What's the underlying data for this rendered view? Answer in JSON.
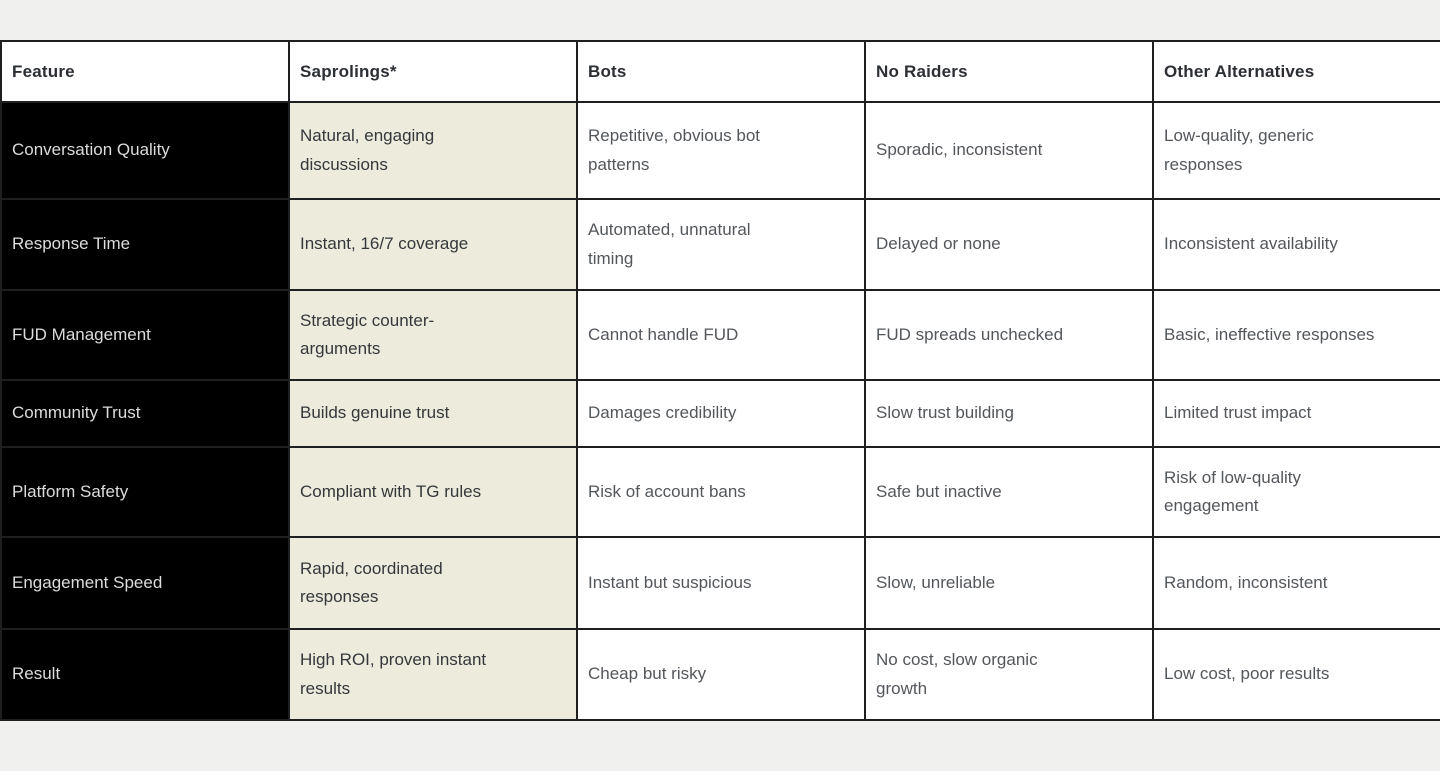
{
  "table": {
    "headers": [
      "Feature",
      "Saprolings*",
      "Bots",
      "No Raiders",
      "Other Alternatives"
    ],
    "rows": [
      {
        "cells": [
          "Conversation Quality",
          "Natural, engaging\ndiscussions",
          "Repetitive, obvious bot\npatterns",
          "Sporadic, inconsistent",
          "Low-quality, generic\nresponses"
        ]
      },
      {
        "cells": [
          "Response Time",
          "Instant, 16/7 coverage",
          "Automated, unnatural\ntiming",
          "Delayed or none",
          "Inconsistent availability"
        ]
      },
      {
        "cells": [
          "FUD Management",
          "Strategic counter-\narguments",
          "Cannot handle FUD",
          "FUD spreads unchecked",
          "Basic, ineffective responses"
        ]
      },
      {
        "cells": [
          "Community Trust",
          "Builds genuine trust",
          "Damages credibility",
          "Slow trust building",
          "Limited trust impact"
        ]
      },
      {
        "cells": [
          "Platform Safety",
          "Compliant with TG rules",
          "Risk of account bans",
          "Safe but inactive",
          "Risk of low-quality\nengagement"
        ]
      },
      {
        "cells": [
          "Engagement Speed",
          "Rapid, coordinated\nresponses",
          "Instant but suspicious",
          "Slow, unreliable",
          "Random, inconsistent"
        ]
      },
      {
        "cells": [
          "Result",
          "High ROI, proven instant\nresults",
          "Cheap but risky",
          "No cost, slow organic\ngrowth",
          "Low cost, poor results"
        ]
      }
    ]
  },
  "colors": {
    "page_background": "#f0f0ee",
    "feature_column_background": "#000000",
    "feature_column_text": "#dcdcdc",
    "saprolings_column_background": "#edecdc",
    "border": "#1e1f21",
    "header_text": "#2b2e33",
    "body_text": "#53575b"
  }
}
